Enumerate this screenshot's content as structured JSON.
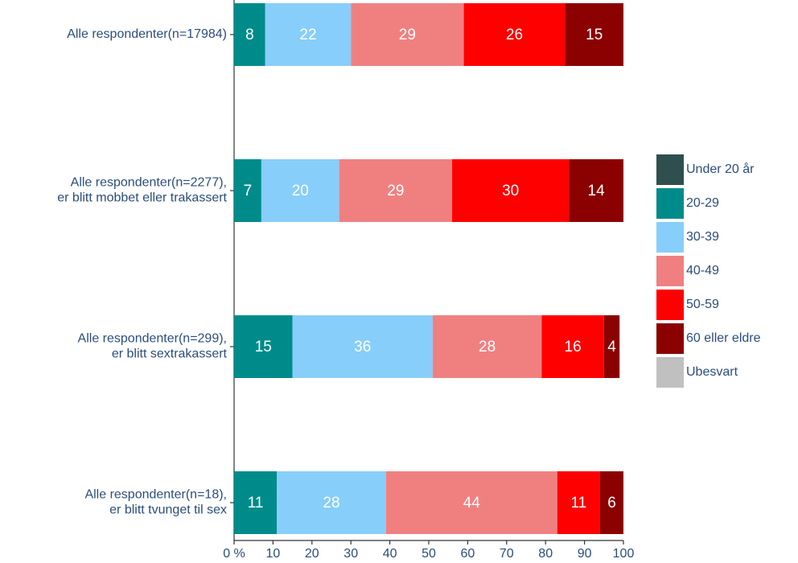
{
  "chart_data": {
    "type": "stacked_barh",
    "categories": [
      "Alle respondenter(n=17984)",
      "Alle respondenter(n=2277),\ner blitt mobbet eller trakassert",
      "Alle respondenter(n=299),\ner blitt sextrakassert",
      "Alle respondenter(n=18),\ner blitt tvunget til sex"
    ],
    "series": [
      {
        "name": "Under 20 år",
        "color": "#2f4f4f",
        "values": [
          0,
          0,
          0,
          0
        ]
      },
      {
        "name": "20-29",
        "color": "#008b8b",
        "values": [
          8,
          7,
          15,
          11
        ]
      },
      {
        "name": "30-39",
        "color": "#87cefa",
        "values": [
          22,
          20,
          36,
          28
        ]
      },
      {
        "name": "40-49",
        "color": "#f08080",
        "values": [
          29,
          29,
          28,
          44
        ]
      },
      {
        "name": "50-59",
        "color": "#ff0000",
        "values": [
          26,
          30,
          16,
          11
        ]
      },
      {
        "name": "60 eller eldre",
        "color": "#8b0000",
        "values": [
          15,
          14,
          4,
          6
        ]
      },
      {
        "name": "Ubesvart",
        "color": "#c0c0c0",
        "values": [
          0,
          0,
          0,
          0
        ]
      }
    ],
    "xlim": [
      0,
      100
    ],
    "xticks": [
      {
        "value": 0,
        "label": "0 %"
      },
      10,
      20,
      30,
      40,
      50,
      60,
      70,
      80,
      90,
      100
    ],
    "legend": "right"
  }
}
